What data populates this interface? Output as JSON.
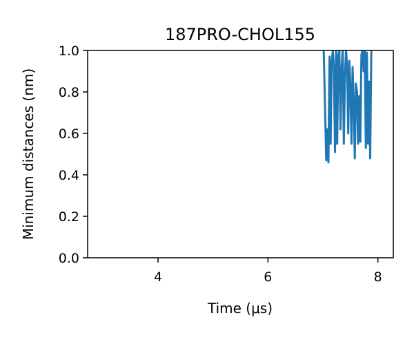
{
  "chart_data": {
    "type": "line",
    "title": "187PRO-CHOL155",
    "xlabel": "Time (μs)",
    "ylabel": "Minimum distances (nm)",
    "xlim": [
      2.72,
      8.28
    ],
    "ylim": [
      0.0,
      1.0
    ],
    "xticks": [
      4,
      6,
      8
    ],
    "xtick_labels": [
      "4",
      "6",
      "8"
    ],
    "yticks": [
      0.0,
      0.2,
      0.4,
      0.6,
      0.8,
      1.0
    ],
    "ytick_labels": [
      "0.0",
      "0.2",
      "0.4",
      "0.6",
      "0.8",
      "1.0"
    ],
    "grid": false,
    "series": [
      {
        "color": "#1f77b4",
        "x": [
          7.01,
          7.06,
          7.08,
          7.1,
          7.12,
          7.14,
          7.16,
          7.18,
          7.2,
          7.22,
          7.24,
          7.26,
          7.28,
          7.3,
          7.32,
          7.34,
          7.36,
          7.38,
          7.4,
          7.42,
          7.44,
          7.46,
          7.48,
          7.5,
          7.52,
          7.54,
          7.56,
          7.58,
          7.6,
          7.62,
          7.64,
          7.66,
          7.68,
          7.7,
          7.72,
          7.74,
          7.76,
          7.78,
          7.8,
          7.82,
          7.84,
          7.86,
          7.88,
          7.9,
          7.93
        ],
        "y": [
          1.05,
          0.47,
          0.62,
          0.46,
          0.97,
          0.55,
          0.95,
          1.0,
          0.92,
          0.51,
          1.0,
          0.55,
          0.98,
          1.0,
          0.62,
          0.91,
          1.0,
          0.55,
          0.87,
          1.0,
          0.92,
          0.6,
          0.95,
          0.82,
          0.55,
          0.92,
          0.75,
          0.48,
          0.84,
          0.8,
          0.55,
          0.78,
          0.56,
          0.98,
          1.0,
          0.9,
          1.0,
          0.53,
          0.99,
          0.55,
          0.85,
          0.48,
          0.99,
          1.05,
          1.05
        ]
      }
    ]
  }
}
